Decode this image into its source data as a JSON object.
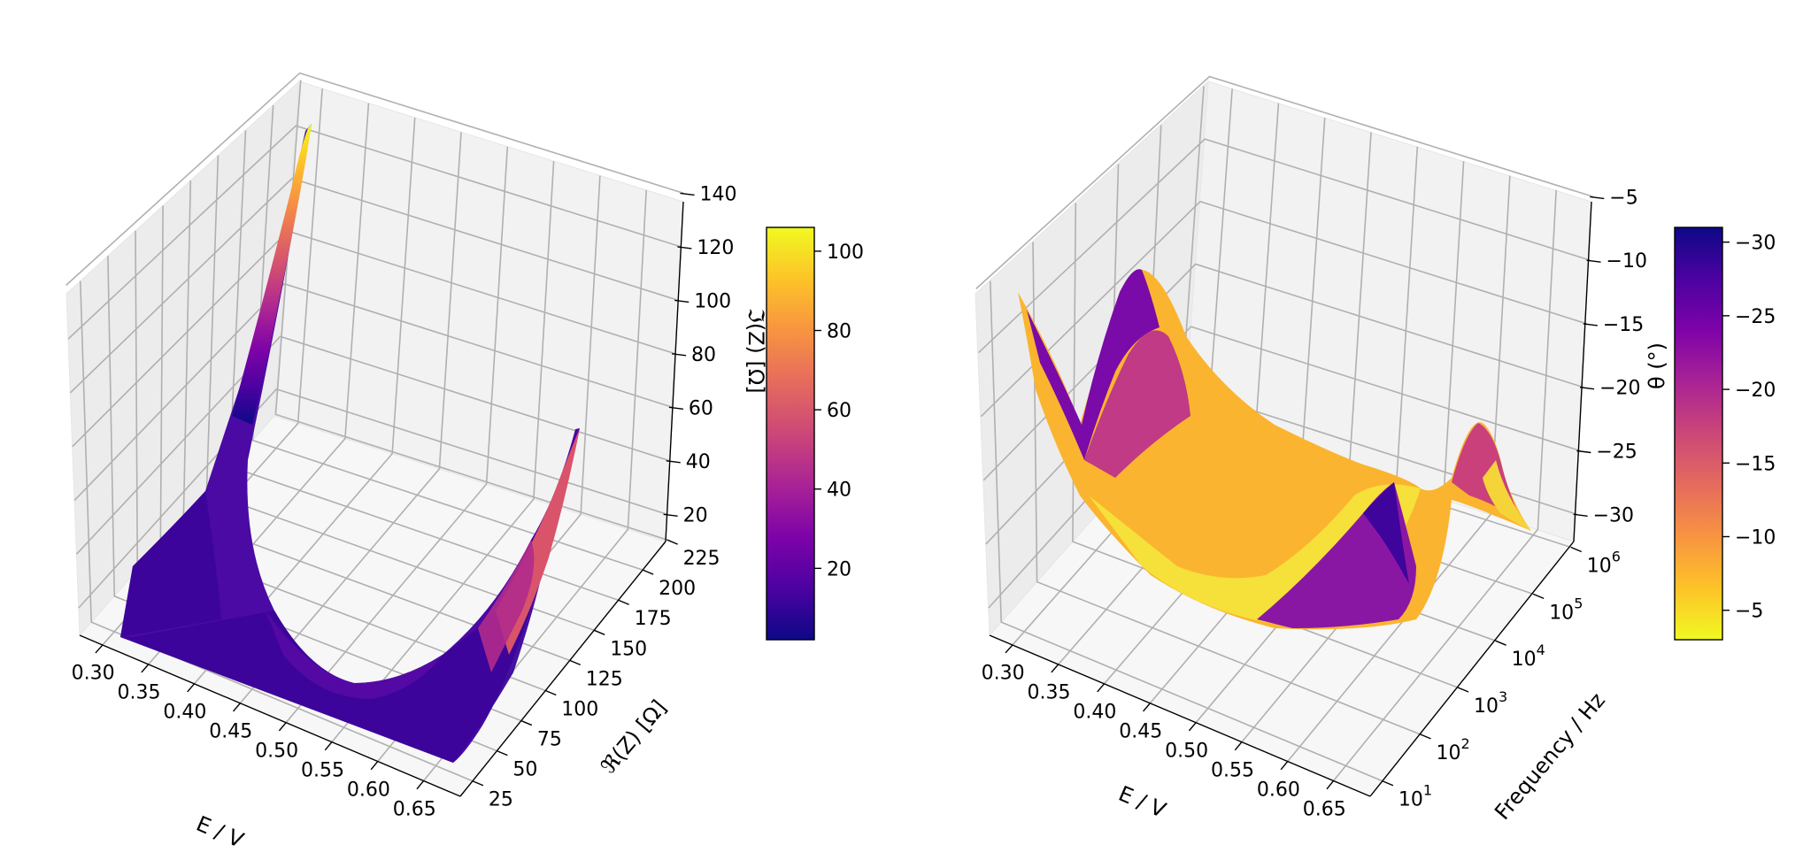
{
  "colors": {
    "pane_back": "#f2f2f2",
    "pane_side": "#ececec",
    "pane_floor": "#f7f7f7",
    "grid": "#b0b0b0",
    "colormap": "plasma"
  },
  "chart_data": [
    {
      "type": "surface3d",
      "panel": "left",
      "xlabel": "E / V",
      "ylabel": "ℜ(Z) [Ω]",
      "colorbar_label": "ℑ(Z) [Ω]",
      "x_ticks": [
        "0.30",
        "0.35",
        "0.40",
        "0.45",
        "0.50",
        "0.55",
        "0.60",
        "0.65"
      ],
      "y_ticks": [
        "25",
        "50",
        "75",
        "100",
        "125",
        "150",
        "175",
        "200",
        "225"
      ],
      "z_ticks": [
        "20",
        "40",
        "60",
        "80",
        "100",
        "120",
        "140"
      ],
      "colorbar_ticks": [
        "20",
        "40",
        "60",
        "80",
        "100"
      ],
      "xlim": [
        0.3,
        0.65
      ],
      "ylim": [
        10,
        240
      ],
      "zlim": [
        0,
        150
      ],
      "colorbar_range": [
        2,
        106
      ],
      "colormap": "plasma",
      "surface_profile": {
        "E": [
          0.31,
          0.33,
          0.35,
          0.36,
          0.38,
          0.4,
          0.42,
          0.45,
          0.48,
          0.5,
          0.53,
          0.56,
          0.59,
          0.61,
          0.63,
          0.65
        ],
        "peak_imZ": [
          10,
          15,
          22,
          34,
          60,
          150,
          40,
          10,
          6,
          5,
          7,
          12,
          24,
          38,
          55,
          72
        ]
      }
    },
    {
      "type": "surface3d",
      "panel": "right",
      "xlabel": "E / V",
      "ylabel": "Frequency / Hz",
      "colorbar_label": "θ (°)",
      "x_ticks": [
        "0.30",
        "0.35",
        "0.40",
        "0.45",
        "0.50",
        "0.55",
        "0.60",
        "0.65"
      ],
      "y_ticks": [
        "10",
        "10",
        "10",
        "10",
        "10",
        "10"
      ],
      "y_tick_exponents": [
        "1",
        "2",
        "3",
        "4",
        "5",
        "6"
      ],
      "z_ticks": [
        "−30",
        "−25",
        "−20",
        "−15",
        "−10",
        "−5"
      ],
      "colorbar_ticks": [
        "−30",
        "−25",
        "−20",
        "−15",
        "−10",
        "−5"
      ],
      "xlim": [
        0.3,
        0.65
      ],
      "ylim_log10": [
        0.8,
        6.3
      ],
      "zlim": [
        -2,
        -34
      ],
      "colorbar_range": [
        -3,
        -31
      ],
      "colormap": "plasma_r",
      "surface_profile": {
        "E": [
          0.3,
          0.33,
          0.35,
          0.38,
          0.4,
          0.43,
          0.45,
          0.48,
          0.5,
          0.53,
          0.55,
          0.58,
          0.6,
          0.62,
          0.65
        ],
        "min_theta": [
          -27,
          -16,
          -32,
          -25,
          -18,
          -10,
          -5,
          -3,
          -4,
          -8,
          -22,
          -6,
          -4,
          -18,
          -5
        ]
      }
    }
  ]
}
